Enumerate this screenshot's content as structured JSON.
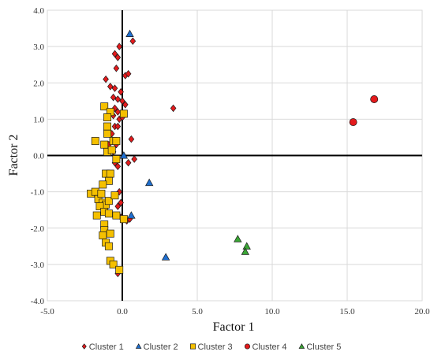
{
  "chart_data": {
    "type": "scatter",
    "title": "",
    "xlabel": "Factor 1",
    "ylabel": "Factor 2",
    "xlim": [
      -5,
      20
    ],
    "ylim": [
      -4,
      4
    ],
    "xticks": [
      -5,
      0,
      5,
      10,
      15,
      20
    ],
    "xtick_labels": [
      "-5.0",
      "0.0",
      "5.0",
      "10.0",
      "15.0",
      "20.0"
    ],
    "yticks": [
      -4,
      -3,
      -2,
      -1,
      0,
      1,
      2,
      3,
      4
    ],
    "ytick_labels": [
      "-4.0",
      "-3.0",
      "-2.0",
      "-1.0",
      "0.0",
      "1.0",
      "2.0",
      "3.0",
      "4.0"
    ],
    "grid": true,
    "legend_position": "bottom",
    "series": [
      {
        "name": "Cluster 1",
        "marker": "diamond",
        "color": "#e31a1c",
        "points": [
          [
            0.7,
            3.15
          ],
          [
            -0.5,
            2.8
          ],
          [
            -0.3,
            2.7
          ],
          [
            -0.2,
            3.0
          ],
          [
            -1.1,
            2.1
          ],
          [
            -0.4,
            2.4
          ],
          [
            0.2,
            2.2
          ],
          [
            0.4,
            2.25
          ],
          [
            -0.8,
            1.9
          ],
          [
            -0.5,
            1.85
          ],
          [
            -0.6,
            1.6
          ],
          [
            -0.3,
            1.55
          ],
          [
            -0.1,
            1.75
          ],
          [
            0.0,
            1.5
          ],
          [
            0.2,
            1.4
          ],
          [
            -0.5,
            1.3
          ],
          [
            -0.3,
            1.2
          ],
          [
            -0.6,
            1.1
          ],
          [
            -0.2,
            1.0
          ],
          [
            0.0,
            1.05
          ],
          [
            -0.5,
            0.8
          ],
          [
            -0.3,
            0.8
          ],
          [
            -0.7,
            0.6
          ],
          [
            -0.9,
            0.3
          ],
          [
            -0.6,
            0.1
          ],
          [
            -0.4,
            -0.1
          ],
          [
            -0.3,
            -0.3
          ],
          [
            -0.5,
            -0.2
          ],
          [
            0.4,
            -0.2
          ],
          [
            0.8,
            -0.1
          ],
          [
            0.6,
            0.45
          ],
          [
            3.4,
            1.3
          ],
          [
            -0.2,
            -1.0
          ],
          [
            -0.3,
            -1.4
          ],
          [
            -0.1,
            -1.7
          ],
          [
            0.3,
            -1.8
          ],
          [
            0.5,
            -1.75
          ],
          [
            -0.3,
            -3.25
          ],
          [
            -0.1,
            -1.3
          ],
          [
            -0.4,
            0.3
          ]
        ]
      },
      {
        "name": "Cluster 2",
        "marker": "triangle",
        "color": "#1f6fd0",
        "points": [
          [
            0.5,
            3.35
          ],
          [
            0.1,
            0.0
          ],
          [
            1.8,
            -0.75
          ],
          [
            0.6,
            -1.65
          ],
          [
            2.9,
            -2.8
          ]
        ]
      },
      {
        "name": "Cluster 3",
        "marker": "square",
        "color": "#f5c000",
        "points": [
          [
            -1.2,
            1.35
          ],
          [
            -0.8,
            1.2
          ],
          [
            -1.0,
            1.05
          ],
          [
            -1.0,
            0.8
          ],
          [
            -1.0,
            0.6
          ],
          [
            -1.8,
            0.4
          ],
          [
            -1.2,
            0.3
          ],
          [
            -0.6,
            0.4
          ],
          [
            -0.4,
            0.4
          ],
          [
            -1.0,
            0.1
          ],
          [
            -0.7,
            0.15
          ],
          [
            -0.4,
            -0.1
          ],
          [
            0.1,
            1.15
          ],
          [
            -1.1,
            -0.5
          ],
          [
            -0.8,
            -0.5
          ],
          [
            -0.9,
            -0.7
          ],
          [
            -1.3,
            -0.8
          ],
          [
            -2.1,
            -1.05
          ],
          [
            -1.8,
            -1.0
          ],
          [
            -1.6,
            -1.2
          ],
          [
            -1.3,
            -1.3
          ],
          [
            -1.1,
            -1.35
          ],
          [
            -1.5,
            -1.4
          ],
          [
            -1.2,
            -1.55
          ],
          [
            -0.9,
            -1.6
          ],
          [
            -1.7,
            -1.65
          ],
          [
            -0.9,
            -1.25
          ],
          [
            -0.4,
            -1.65
          ],
          [
            0.1,
            -1.75
          ],
          [
            -1.2,
            -1.9
          ],
          [
            -1.2,
            -2.05
          ],
          [
            -1.3,
            -2.2
          ],
          [
            -0.8,
            -2.15
          ],
          [
            -1.1,
            -2.4
          ],
          [
            -0.9,
            -2.5
          ],
          [
            -0.8,
            -2.9
          ],
          [
            -0.6,
            -3.0
          ],
          [
            -0.2,
            -3.15
          ],
          [
            -0.5,
            -1.1
          ],
          [
            -1.4,
            -1.05
          ]
        ]
      },
      {
        "name": "Cluster 4",
        "marker": "circle",
        "color": "#e31a1c",
        "points": [
          [
            16.8,
            1.55
          ],
          [
            15.4,
            0.92
          ]
        ]
      },
      {
        "name": "Cluster 5",
        "marker": "triangle",
        "color": "#3aa635",
        "points": [
          [
            7.7,
            -2.3
          ],
          [
            8.3,
            -2.5
          ],
          [
            8.2,
            -2.65
          ]
        ]
      }
    ]
  }
}
